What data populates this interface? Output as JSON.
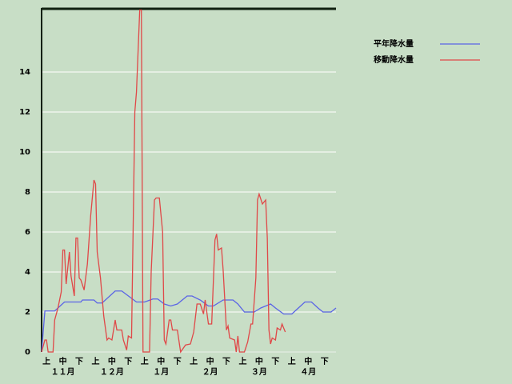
{
  "chart_data": {
    "type": "line",
    "xlim": [
      0,
      180
    ],
    "ylim": [
      0,
      17.2
    ],
    "yticks": [
      0,
      2,
      4,
      6,
      8,
      10,
      12,
      14
    ],
    "grid": true,
    "legend": "top-right",
    "xticks": [
      {
        "value": 3,
        "label": "上"
      },
      {
        "value": 13,
        "label": "中"
      },
      {
        "value": 23,
        "label": "下"
      },
      {
        "value": 33,
        "label": "上"
      },
      {
        "value": 43,
        "label": "中"
      },
      {
        "value": 53,
        "label": "下"
      },
      {
        "value": 63,
        "label": "上"
      },
      {
        "value": 73,
        "label": "中"
      },
      {
        "value": 83,
        "label": "下"
      },
      {
        "value": 93,
        "label": "上"
      },
      {
        "value": 103,
        "label": "中"
      },
      {
        "value": 113,
        "label": "下"
      },
      {
        "value": 123,
        "label": "上"
      },
      {
        "value": 133,
        "label": "中"
      },
      {
        "value": 143,
        "label": "下"
      },
      {
        "value": 153,
        "label": "上"
      },
      {
        "value": 163,
        "label": "中"
      },
      {
        "value": 173,
        "label": "下"
      }
    ],
    "month_labels": [
      {
        "value": 13,
        "label": "１１月"
      },
      {
        "value": 43,
        "label": "１２月"
      },
      {
        "value": 73,
        "label": "１月"
      },
      {
        "value": 103,
        "label": "２月"
      },
      {
        "value": 133,
        "label": "３月"
      },
      {
        "value": 163,
        "label": "４月"
      }
    ],
    "series": [
      {
        "name": "平年降水量",
        "color": "#5a64e6",
        "x": [
          0,
          2,
          8,
          14,
          24,
          25,
          32,
          34,
          37,
          45,
          49,
          58,
          63,
          68,
          71,
          75,
          79,
          83,
          89,
          92,
          97,
          102,
          105,
          111,
          117,
          120,
          124,
          130,
          134,
          140,
          143,
          148,
          153,
          157,
          161,
          165,
          169,
          172,
          177,
          180
        ],
        "values": [
          0,
          2.05,
          2.05,
          2.5,
          2.5,
          2.6,
          2.6,
          2.45,
          2.45,
          3.05,
          3.05,
          2.5,
          2.5,
          2.65,
          2.65,
          2.4,
          2.3,
          2.4,
          2.8,
          2.8,
          2.6,
          2.3,
          2.3,
          2.6,
          2.6,
          2.4,
          2.0,
          2.0,
          2.2,
          2.4,
          2.2,
          1.9,
          1.9,
          2.2,
          2.5,
          2.5,
          2.2,
          2.0,
          2.0,
          2.2
        ]
      },
      {
        "name": "移動降水量",
        "color": "#e04848",
        "x": [
          0,
          2,
          3,
          4,
          7,
          8,
          10,
          12,
          13,
          14,
          15,
          17,
          18,
          20,
          21,
          22,
          23,
          24,
          26,
          28,
          30,
          32,
          33,
          34,
          36,
          38,
          40,
          41,
          43,
          45,
          46,
          49,
          50,
          52,
          53,
          55,
          57,
          58,
          60,
          61,
          62,
          66,
          67,
          69,
          70,
          72,
          74,
          75,
          76,
          78,
          79,
          80,
          83,
          85,
          88,
          91,
          93,
          95,
          97,
          99,
          100,
          102,
          104,
          106,
          107,
          108,
          110,
          111,
          113,
          114,
          115,
          118,
          119,
          120,
          121,
          124,
          126,
          128,
          129,
          131,
          132,
          133,
          135,
          137,
          138,
          139,
          140,
          141,
          143,
          144,
          146,
          147,
          149
        ],
        "values": [
          0,
          0.6,
          0.6,
          0,
          0,
          1.6,
          2.2,
          3,
          5.1,
          5.1,
          3.4,
          5,
          3.8,
          2.8,
          5.7,
          5.7,
          3.7,
          3.6,
          3.1,
          4.4,
          6.8,
          8.6,
          8.4,
          5,
          3.7,
          1.8,
          0.6,
          0.7,
          0.6,
          1.6,
          1.1,
          1.1,
          0.6,
          0.1,
          0.8,
          0.7,
          12,
          13,
          17.1,
          17.1,
          0,
          0,
          4,
          7.6,
          7.7,
          7.7,
          6,
          0.6,
          0.4,
          1.6,
          1.6,
          1.1,
          1.1,
          0,
          0.35,
          0.4,
          1,
          2.4,
          2.4,
          1.9,
          2.6,
          1.4,
          1.4,
          5.6,
          5.9,
          5.1,
          5.2,
          4.1,
          1.1,
          1.3,
          0.7,
          0.6,
          0,
          0.8,
          0,
          0,
          0.5,
          1.4,
          1.4,
          3.7,
          7.6,
          7.9,
          7.4,
          7.6,
          5.7,
          1.1,
          0.4,
          0.7,
          0.6,
          1.2,
          1.1,
          1.4,
          1.0
        ]
      }
    ]
  }
}
